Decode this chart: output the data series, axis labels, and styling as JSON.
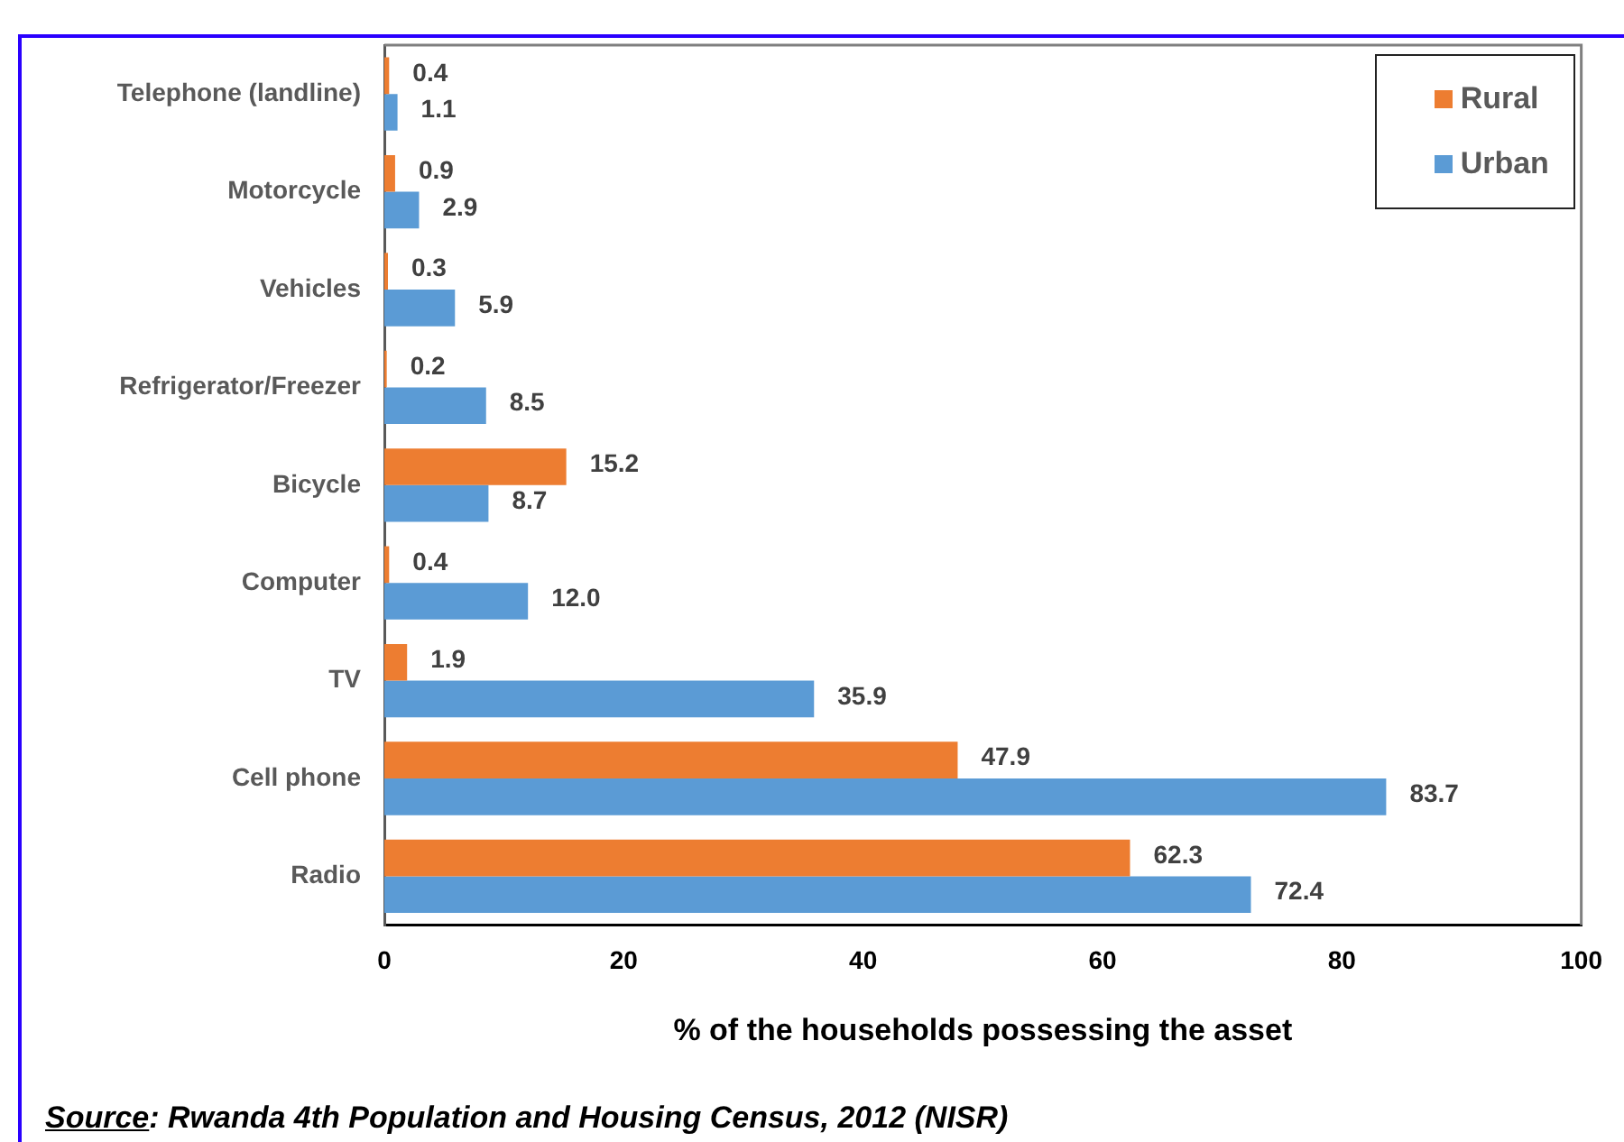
{
  "chart_data": {
    "type": "bar",
    "orientation": "horizontal",
    "categories": [
      "Telephone (landline)",
      "Motorcycle",
      "Vehicles",
      "Refrigerator/Freezer",
      "Bicycle",
      "Computer",
      "TV",
      "Cell phone",
      "Radio"
    ],
    "series": [
      {
        "name": "Rural",
        "color": "#ed7d31",
        "values": [
          0.4,
          0.9,
          0.3,
          0.2,
          15.2,
          0.4,
          1.9,
          47.9,
          62.3
        ],
        "value_labels": [
          "0.4",
          "0.9",
          "0.3",
          "0.2",
          "15.2",
          "0.4",
          "1.9",
          "47.9",
          "62.3"
        ]
      },
      {
        "name": "Urban",
        "color": "#5b9bd5",
        "values": [
          1.1,
          2.9,
          5.9,
          8.5,
          8.7,
          12.0,
          35.9,
          83.7,
          72.4
        ],
        "value_labels": [
          "1.1",
          "2.9",
          "5.9",
          "8.5",
          "8.7",
          "12.0",
          "35.9",
          "83.7",
          "72.4"
        ]
      }
    ],
    "xlim": [
      0,
      100
    ],
    "xticks": [
      0,
      20,
      40,
      60,
      80,
      100
    ],
    "xlabel": "% of the households possessing the asset",
    "legend": "top right",
    "annotations": [
      "Source: Rwanda 4th Population and Housing Census, 2012 (NISR)"
    ]
  }
}
